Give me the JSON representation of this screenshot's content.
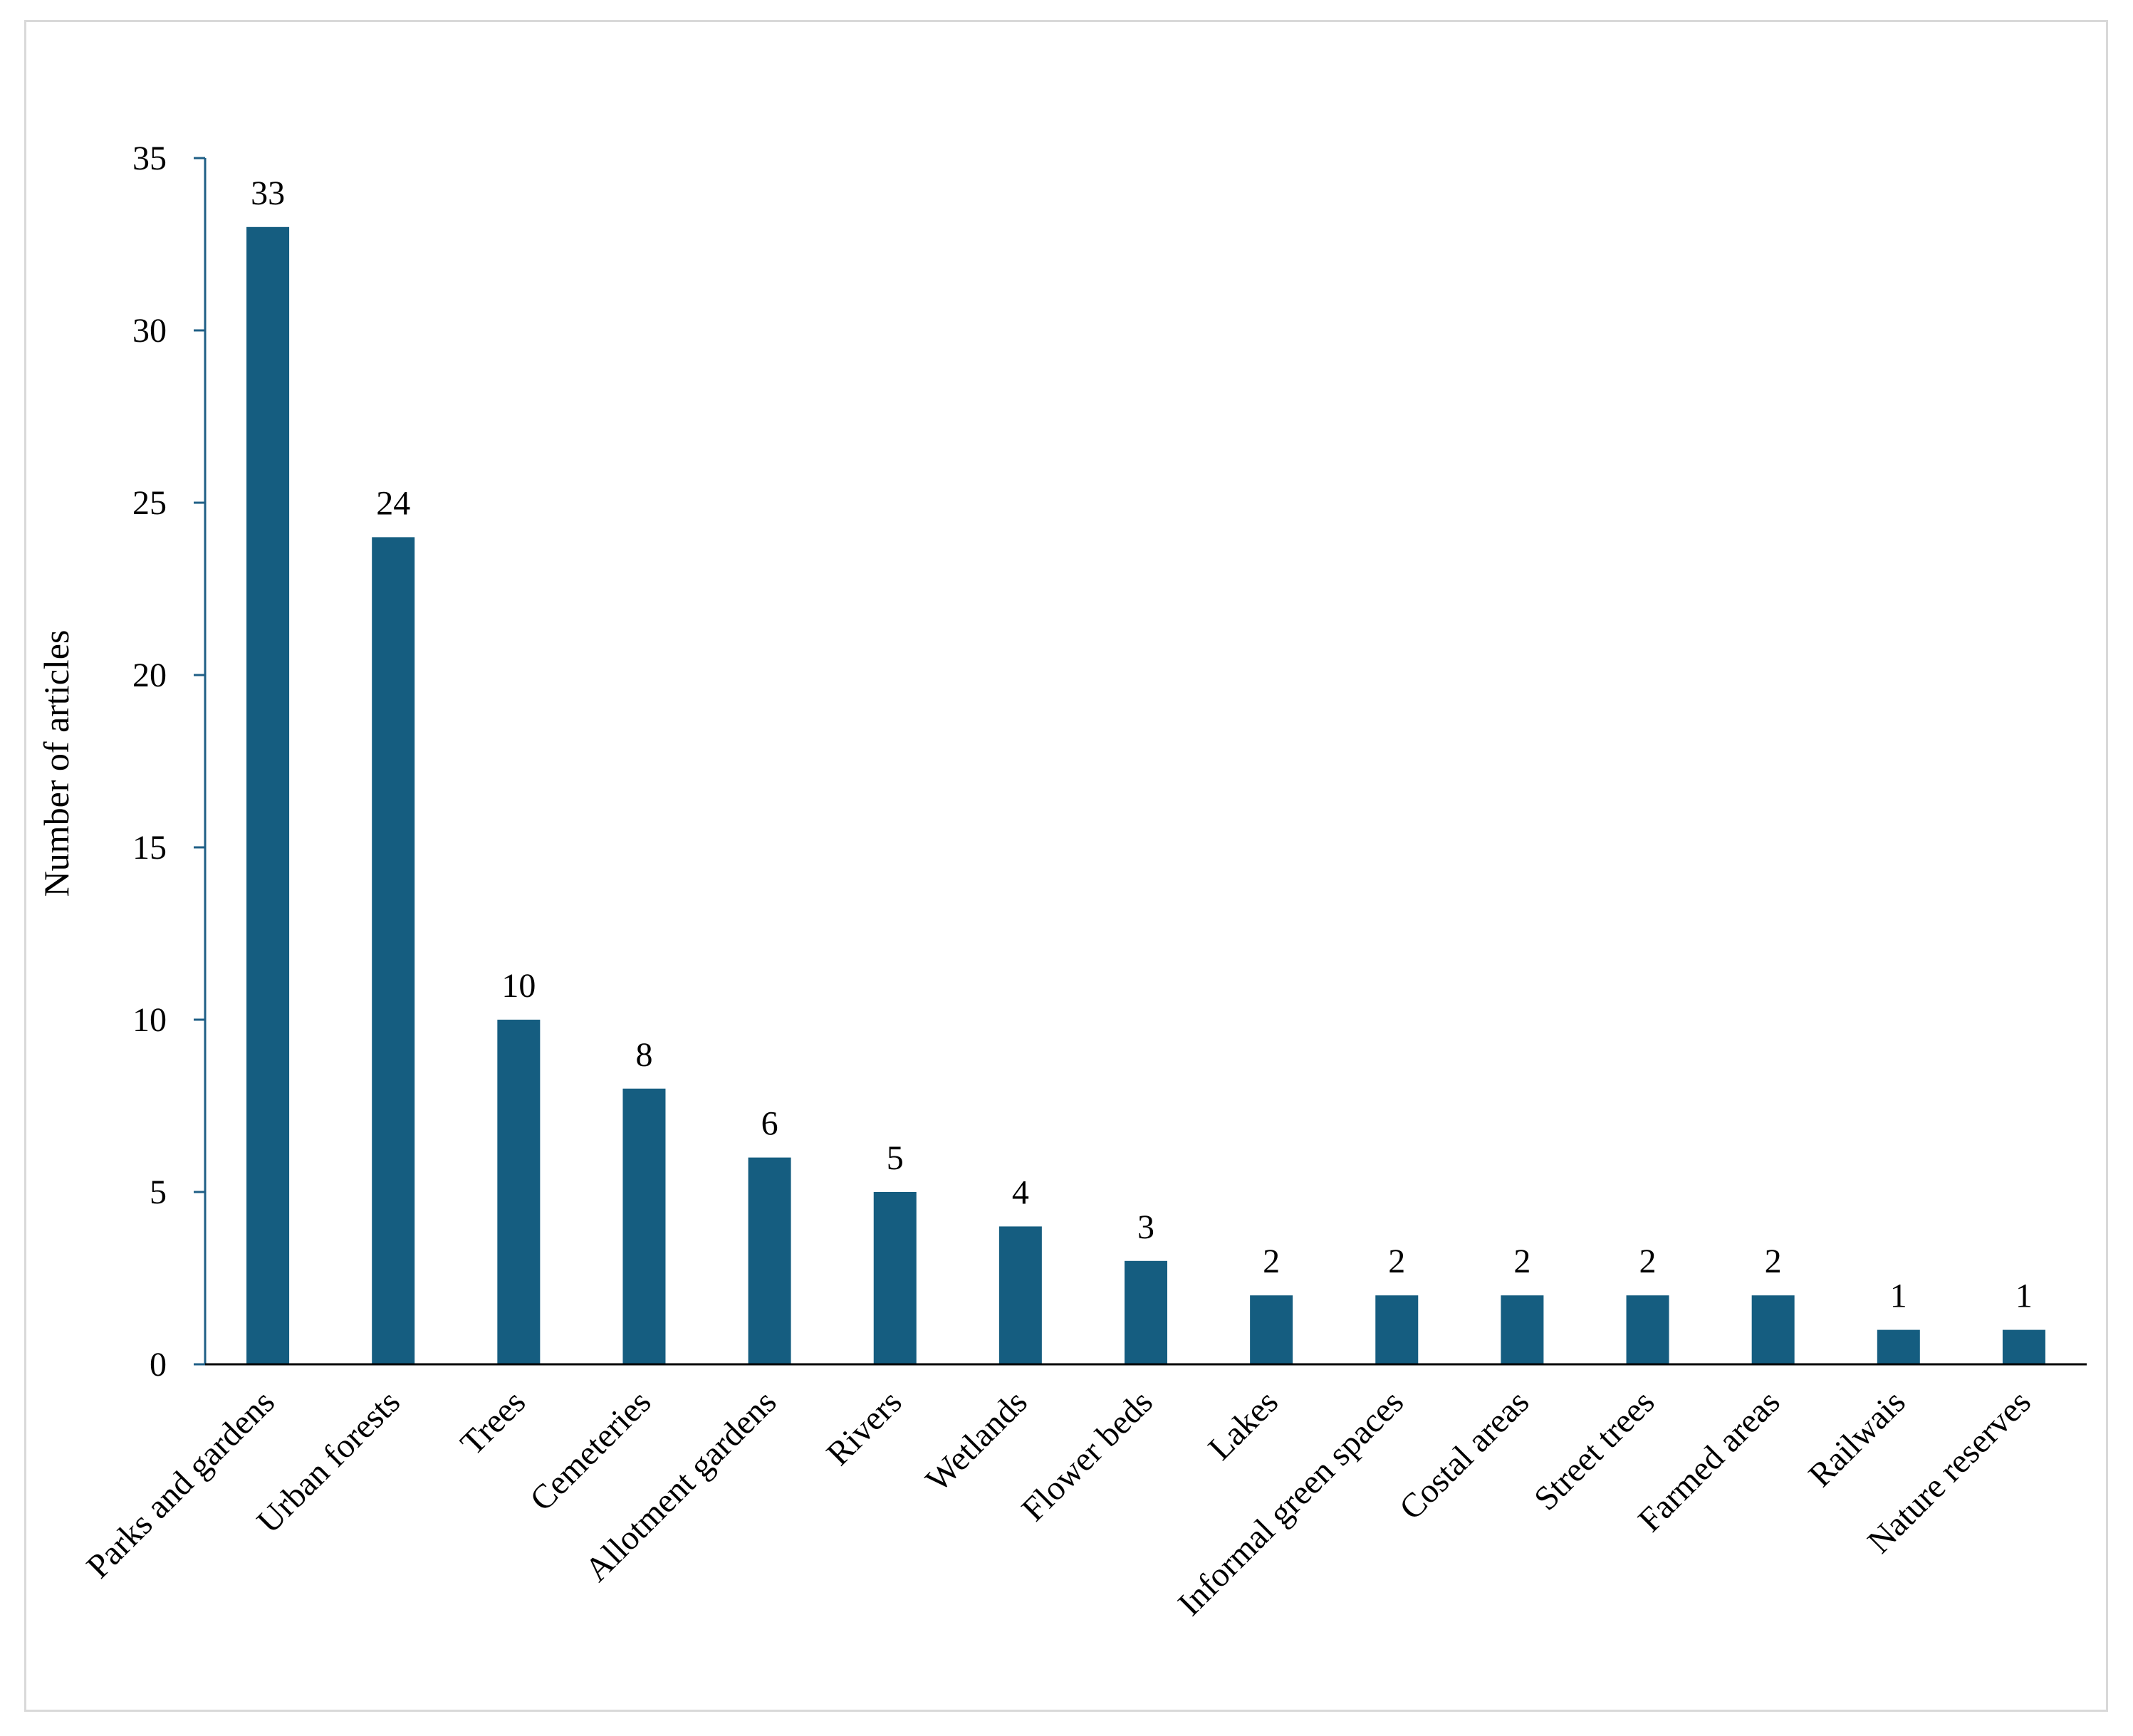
{
  "colors": {
    "bar": "#155d80",
    "axis": "#1f5f86",
    "baseline": "#000000",
    "border": "#d9d9d9"
  },
  "chart_data": {
    "type": "bar",
    "title": "",
    "xlabel": "",
    "ylabel": "Number of articles",
    "ylim": [
      0,
      35
    ],
    "yticks": [
      0,
      5,
      10,
      15,
      20,
      25,
      30,
      35
    ],
    "grid": false,
    "legend": "none",
    "categories": [
      "Parks and gardens",
      "Urban forests",
      "Trees",
      "Cemeteries",
      "Allotment gardens",
      "Rivers",
      "Wetlands",
      "Flower beds",
      "Lakes",
      "Informal green spaces",
      "Costal areas",
      "Street trees",
      "Farmed areas",
      "Railwais",
      "Nature reserves"
    ],
    "values": [
      33,
      24,
      10,
      8,
      6,
      5,
      4,
      3,
      2,
      2,
      2,
      2,
      2,
      1,
      1
    ],
    "data_labels": [
      "33",
      "24",
      "10",
      "8",
      "6",
      "5",
      "4",
      "3",
      "2",
      "2",
      "2",
      "2",
      "2",
      "1",
      "1"
    ]
  }
}
